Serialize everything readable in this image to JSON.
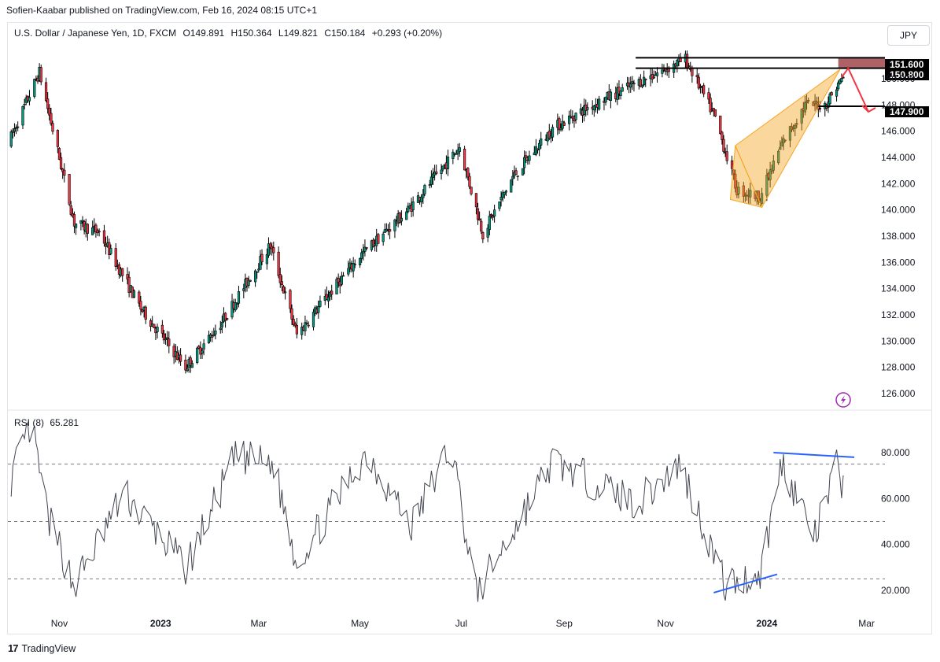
{
  "publish": {
    "text": "Sofien-Kaabar published on TradingView.com, Feb 16, 2024 08:15 UTC+1"
  },
  "legend": {
    "symbol": "U.S. Dollar / Japanese Yen, 1D, FXCM",
    "open": "O149.891",
    "high": "H150.364",
    "low": "L149.821",
    "close": "C150.184",
    "change": "+0.293 (+0.20%)"
  },
  "currency": "JPY",
  "rsi_legend": {
    "name": "RSI (8)",
    "value": "65.281"
  },
  "branding": {
    "text": "TradingView"
  },
  "colors": {
    "up": "#089981",
    "down": "#f23645",
    "candle_border": "#000000",
    "triangle": "#f5a623",
    "zone": "#a0474c",
    "rsi_line": "#434651",
    "divergence": "#2962ff",
    "arrow": "#f23645"
  },
  "chart_data": [
    {
      "type": "candlestick",
      "title": "",
      "y_ticks": [
        "126.000",
        "128.000",
        "130.000",
        "132.000",
        "134.000",
        "136.000",
        "138.000",
        "140.000",
        "142.000",
        "144.000",
        "146.000",
        "148.000",
        "150.000"
      ],
      "ylim": [
        125.0,
        153.0
      ],
      "x_ticks": [
        "Nov",
        "2023",
        "Mar",
        "May",
        "Jul",
        "Sep",
        "Nov",
        "2024",
        "Mar"
      ],
      "key_points": [
        {
          "date": "2022-10-01",
          "close": 145.0
        },
        {
          "date": "2022-10-20",
          "close": 150.5
        },
        {
          "date": "2022-11-10",
          "close": 139.0
        },
        {
          "date": "2022-11-25",
          "close": 138.3
        },
        {
          "date": "2022-12-20",
          "close": 132.5
        },
        {
          "date": "2023-01-16",
          "close": 128.0
        },
        {
          "date": "2023-02-07",
          "close": 131.5
        },
        {
          "date": "2023-03-08",
          "close": 137.3
        },
        {
          "date": "2023-03-24",
          "close": 130.5
        },
        {
          "date": "2023-04-15",
          "close": 134.0
        },
        {
          "date": "2023-05-01",
          "close": 136.5
        },
        {
          "date": "2023-05-30",
          "close": 140.0
        },
        {
          "date": "2023-06-30",
          "close": 144.8
        },
        {
          "date": "2023-07-14",
          "close": 138.2
        },
        {
          "date": "2023-08-01",
          "close": 142.5
        },
        {
          "date": "2023-08-25",
          "close": 146.2
        },
        {
          "date": "2023-09-15",
          "close": 147.8
        },
        {
          "date": "2023-10-20",
          "close": 150.0
        },
        {
          "date": "2023-11-13",
          "close": 151.5
        },
        {
          "date": "2023-12-01",
          "close": 147.0
        },
        {
          "date": "2023-12-14",
          "close": 141.5
        },
        {
          "date": "2023-12-28",
          "close": 141.0
        },
        {
          "date": "2024-01-10",
          "close": 145.0
        },
        {
          "date": "2024-01-24",
          "close": 148.0
        },
        {
          "date": "2024-02-05",
          "close": 148.0
        },
        {
          "date": "2024-02-16",
          "close": 150.18
        }
      ],
      "levels": [
        {
          "label": "151.600",
          "value": 151.6
        },
        {
          "label": "150.800",
          "value": 150.8
        },
        {
          "label": "147.900",
          "value": 147.9
        }
      ],
      "annotations": [
        "resistance zone 150.800-151.600",
        "rising wedge",
        "projected drop to 147.900"
      ]
    },
    {
      "type": "line",
      "name": "RSI (8)",
      "y_ticks": [
        "20.000",
        "40.000",
        "60.000",
        "80.000"
      ],
      "ylim": [
        10,
        95
      ],
      "guides": [
        25,
        50,
        75
      ],
      "key_points": [
        {
          "date": "2022-10-01",
          "value": 65
        },
        {
          "date": "2022-10-15",
          "value": 92
        },
        {
          "date": "2022-10-25",
          "value": 52
        },
        {
          "date": "2022-11-10",
          "value": 22
        },
        {
          "date": "2022-12-10",
          "value": 62
        },
        {
          "date": "2023-01-16",
          "value": 30
        },
        {
          "date": "2023-02-15",
          "value": 78
        },
        {
          "date": "2023-03-10",
          "value": 75
        },
        {
          "date": "2023-03-24",
          "value": 32
        },
        {
          "date": "2023-05-05",
          "value": 80
        },
        {
          "date": "2023-06-01",
          "value": 48
        },
        {
          "date": "2023-06-25",
          "value": 84
        },
        {
          "date": "2023-07-10",
          "value": 18
        },
        {
          "date": "2023-08-25",
          "value": 76
        },
        {
          "date": "2023-10-15",
          "value": 58
        },
        {
          "date": "2023-11-10",
          "value": 75
        },
        {
          "date": "2023-12-07",
          "value": 22
        },
        {
          "date": "2023-12-28",
          "value": 27
        },
        {
          "date": "2024-01-10",
          "value": 76
        },
        {
          "date": "2024-01-30",
          "value": 43
        },
        {
          "date": "2024-02-12",
          "value": 74
        },
        {
          "date": "2024-02-16",
          "value": 65.3
        }
      ],
      "annotations": [
        "bearish divergence line at highs",
        "bullish divergence line at lows"
      ]
    }
  ]
}
